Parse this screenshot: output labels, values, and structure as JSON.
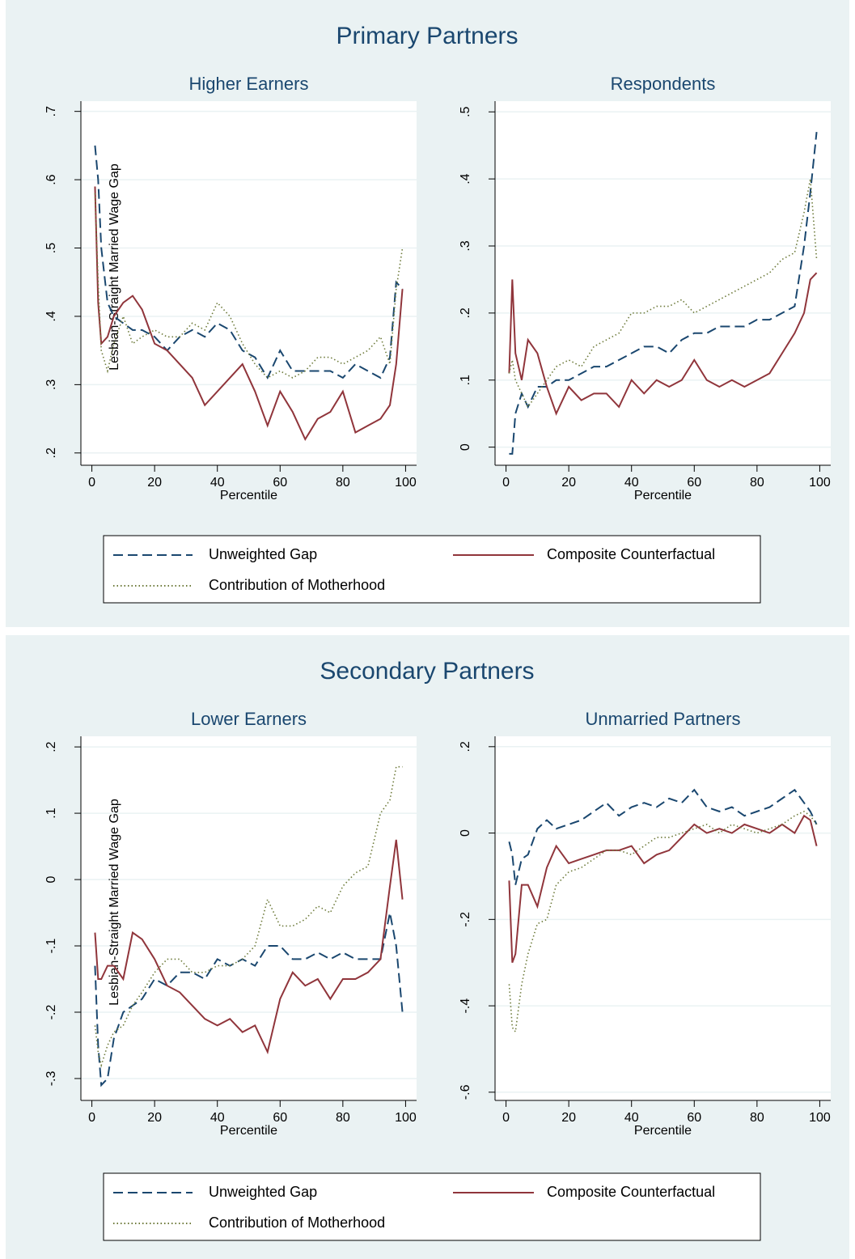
{
  "figure_titles": [
    "Primary Partners",
    "Secondary Partners"
  ],
  "chart_data": [
    {
      "type": "line",
      "title": "Higher Earners",
      "ylabel": "Lesbian-Straight Married Wage Gap",
      "xlabel": "Percentile",
      "grid": true,
      "xlim": [
        -3.5,
        103.5
      ],
      "xticks": [
        0,
        20,
        40,
        60,
        80,
        100
      ],
      "ylim": [
        0.182,
        0.715
      ],
      "yticks": [
        {
          "value": 0.2,
          "label": ".2"
        },
        {
          "value": 0.3,
          "label": ".3"
        },
        {
          "value": 0.4,
          "label": ".4"
        },
        {
          "value": 0.5,
          "label": ".5"
        },
        {
          "value": 0.6,
          "label": ".6"
        },
        {
          "value": 0.7,
          "label": ".7"
        }
      ],
      "x": [
        1,
        2,
        3,
        5,
        7,
        10,
        13,
        16,
        20,
        24,
        28,
        32,
        36,
        40,
        44,
        48,
        52,
        56,
        60,
        64,
        68,
        72,
        76,
        80,
        84,
        88,
        92,
        95,
        97,
        99
      ],
      "series": [
        {
          "name": "Unweighted Gap",
          "color": "#1a476f",
          "style": "dashed",
          "values": [
            0.65,
            0.6,
            0.5,
            0.42,
            0.4,
            0.39,
            0.38,
            0.38,
            0.37,
            0.35,
            0.37,
            0.38,
            0.37,
            0.39,
            0.38,
            0.35,
            0.34,
            0.31,
            0.35,
            0.32,
            0.32,
            0.32,
            0.32,
            0.31,
            0.33,
            0.32,
            0.31,
            0.34,
            0.45,
            0.44
          ]
        },
        {
          "name": "Composite Counterfactual",
          "color": "#90353b",
          "style": "solid",
          "values": [
            0.59,
            0.42,
            0.36,
            0.37,
            0.4,
            0.42,
            0.43,
            0.41,
            0.36,
            0.35,
            0.33,
            0.31,
            0.27,
            0.29,
            0.31,
            0.33,
            0.29,
            0.24,
            0.29,
            0.26,
            0.22,
            0.25,
            0.26,
            0.29,
            0.23,
            0.24,
            0.25,
            0.27,
            0.33,
            0.44
          ]
        },
        {
          "name": "Contribution of Motherhood",
          "color": "#6d7a3a",
          "style": "dotted",
          "values": [
            0.58,
            0.45,
            0.35,
            0.32,
            0.36,
            0.4,
            0.36,
            0.37,
            0.38,
            0.37,
            0.37,
            0.39,
            0.38,
            0.42,
            0.4,
            0.36,
            0.33,
            0.31,
            0.32,
            0.31,
            0.32,
            0.34,
            0.34,
            0.33,
            0.34,
            0.35,
            0.37,
            0.33,
            0.44,
            0.5
          ]
        }
      ]
    },
    {
      "type": "line",
      "title": "Respondents",
      "xlabel": "Percentile",
      "grid": true,
      "xlim": [
        -3.5,
        103.5
      ],
      "xticks": [
        0,
        20,
        40,
        60,
        80,
        100
      ],
      "ylim": [
        -0.027,
        0.516
      ],
      "yticks": [
        0,
        {
          "value": 0.1,
          "label": ".1"
        },
        {
          "value": 0.2,
          "label": ".2"
        },
        {
          "value": 0.3,
          "label": ".3"
        },
        {
          "value": 0.4,
          "label": ".4"
        },
        {
          "value": 0.5,
          "label": ".5"
        }
      ],
      "x": [
        1,
        2,
        3,
        5,
        7,
        10,
        13,
        16,
        20,
        24,
        28,
        32,
        36,
        40,
        44,
        48,
        52,
        56,
        60,
        64,
        68,
        72,
        76,
        80,
        84,
        88,
        92,
        95,
        97,
        99
      ],
      "series": [
        {
          "name": "Unweighted Gap",
          "color": "#1a476f",
          "style": "dashed",
          "values": [
            -0.01,
            -0.01,
            0.05,
            0.08,
            0.06,
            0.09,
            0.09,
            0.1,
            0.1,
            0.11,
            0.12,
            0.12,
            0.13,
            0.14,
            0.15,
            0.15,
            0.14,
            0.16,
            0.17,
            0.17,
            0.18,
            0.18,
            0.18,
            0.19,
            0.19,
            0.2,
            0.21,
            0.3,
            0.38,
            0.47
          ]
        },
        {
          "name": "Composite Counterfactual",
          "color": "#90353b",
          "style": "solid",
          "values": [
            0.11,
            0.25,
            0.14,
            0.1,
            0.16,
            0.14,
            0.09,
            0.05,
            0.09,
            0.07,
            0.08,
            0.08,
            0.06,
            0.1,
            0.08,
            0.1,
            0.09,
            0.1,
            0.13,
            0.1,
            0.09,
            0.1,
            0.09,
            0.1,
            0.11,
            0.14,
            0.17,
            0.2,
            0.25,
            0.26
          ]
        },
        {
          "name": "Contribution of Motherhood",
          "color": "#6d7a3a",
          "style": "dotted",
          "values": [
            0.11,
            0.13,
            0.1,
            0.08,
            0.06,
            0.08,
            0.1,
            0.12,
            0.13,
            0.12,
            0.15,
            0.16,
            0.17,
            0.2,
            0.2,
            0.21,
            0.21,
            0.22,
            0.2,
            0.21,
            0.22,
            0.23,
            0.24,
            0.25,
            0.26,
            0.28,
            0.29,
            0.35,
            0.4,
            0.28
          ]
        }
      ]
    },
    {
      "type": "line",
      "title": "Lower Earners",
      "ylabel": "Lesbian-Straight Married Wage Gap",
      "xlabel": "Percentile",
      "grid": true,
      "xlim": [
        -3.5,
        103.5
      ],
      "xticks": [
        0,
        20,
        40,
        60,
        80,
        100
      ],
      "ylim": [
        -0.333,
        0.216
      ],
      "yticks": [
        {
          "value": -0.3,
          "label": "-.3"
        },
        {
          "value": -0.2,
          "label": "-.2"
        },
        {
          "value": -0.1,
          "label": "-.1"
        },
        0,
        {
          "value": 0.1,
          "label": ".1"
        },
        {
          "value": 0.2,
          "label": ".2"
        }
      ],
      "x": [
        1,
        2,
        3,
        5,
        7,
        10,
        13,
        16,
        20,
        24,
        28,
        32,
        36,
        40,
        44,
        48,
        52,
        56,
        60,
        64,
        68,
        72,
        76,
        80,
        84,
        88,
        92,
        95,
        97,
        99
      ],
      "series": [
        {
          "name": "Unweighted Gap",
          "color": "#1a476f",
          "style": "dashed",
          "values": [
            -0.13,
            -0.25,
            -0.31,
            -0.3,
            -0.24,
            -0.2,
            -0.19,
            -0.18,
            -0.15,
            -0.16,
            -0.14,
            -0.14,
            -0.15,
            -0.12,
            -0.13,
            -0.12,
            -0.13,
            -0.1,
            -0.1,
            -0.12,
            -0.12,
            -0.11,
            -0.12,
            -0.11,
            -0.12,
            -0.12,
            -0.12,
            -0.05,
            -0.1,
            -0.2
          ]
        },
        {
          "name": "Composite Counterfactual",
          "color": "#90353b",
          "style": "solid",
          "values": [
            -0.08,
            -0.15,
            -0.15,
            -0.13,
            -0.13,
            -0.15,
            -0.08,
            -0.09,
            -0.12,
            -0.16,
            -0.17,
            -0.19,
            -0.21,
            -0.22,
            -0.21,
            -0.23,
            -0.22,
            -0.26,
            -0.18,
            -0.14,
            -0.16,
            -0.15,
            -0.18,
            -0.15,
            -0.15,
            -0.14,
            -0.12,
            -0.01,
            0.06,
            -0.03
          ]
        },
        {
          "name": "Contribution of Motherhood",
          "color": "#6d7a3a",
          "style": "dotted",
          "values": [
            -0.22,
            -0.26,
            -0.28,
            -0.25,
            -0.23,
            -0.22,
            -0.19,
            -0.17,
            -0.14,
            -0.12,
            -0.12,
            -0.14,
            -0.14,
            -0.13,
            -0.13,
            -0.12,
            -0.1,
            -0.03,
            -0.07,
            -0.07,
            -0.06,
            -0.04,
            -0.05,
            -0.01,
            0.01,
            0.02,
            0.1,
            0.12,
            0.17,
            0.17
          ]
        }
      ]
    },
    {
      "type": "line",
      "title": "Unmarried Partners",
      "xlabel": "Percentile",
      "grid": true,
      "xlim": [
        -3.5,
        103.5
      ],
      "xticks": [
        0,
        20,
        40,
        60,
        80,
        100
      ],
      "ylim": [
        -0.619,
        0.224
      ],
      "yticks": [
        {
          "value": -0.6,
          "label": "-.6"
        },
        {
          "value": -0.4,
          "label": "-.4"
        },
        {
          "value": -0.2,
          "label": "-.2"
        },
        0,
        {
          "value": 0.2,
          "label": ".2"
        }
      ],
      "x": [
        1,
        2,
        3,
        5,
        7,
        10,
        13,
        16,
        20,
        24,
        28,
        32,
        36,
        40,
        44,
        48,
        52,
        56,
        60,
        64,
        68,
        72,
        76,
        80,
        84,
        88,
        92,
        95,
        97,
        99
      ],
      "series": [
        {
          "name": "Unweighted Gap",
          "color": "#1a476f",
          "style": "dashed",
          "values": [
            -0.02,
            -0.05,
            -0.12,
            -0.06,
            -0.05,
            0.01,
            0.03,
            0.01,
            0.02,
            0.03,
            0.05,
            0.07,
            0.04,
            0.06,
            0.07,
            0.06,
            0.08,
            0.07,
            0.1,
            0.06,
            0.05,
            0.06,
            0.04,
            0.05,
            0.06,
            0.08,
            0.1,
            0.07,
            0.05,
            0.02
          ]
        },
        {
          "name": "Composite Counterfactual",
          "color": "#90353b",
          "style": "solid",
          "values": [
            -0.11,
            -0.3,
            -0.28,
            -0.12,
            -0.12,
            -0.17,
            -0.08,
            -0.03,
            -0.07,
            -0.06,
            -0.05,
            -0.04,
            -0.04,
            -0.03,
            -0.07,
            -0.05,
            -0.04,
            -0.01,
            0.02,
            0,
            0.01,
            0,
            0.02,
            0.01,
            0,
            0.02,
            0,
            0.04,
            0.03,
            -0.03
          ]
        },
        {
          "name": "Contribution of Motherhood",
          "color": "#6d7a3a",
          "style": "dotted",
          "values": [
            -0.35,
            -0.45,
            -0.46,
            -0.35,
            -0.28,
            -0.21,
            -0.2,
            -0.12,
            -0.09,
            -0.08,
            -0.06,
            -0.04,
            -0.04,
            -0.05,
            -0.03,
            -0.01,
            -0.01,
            0,
            0.01,
            0.02,
            0,
            0.02,
            0.01,
            0,
            0.01,
            0.02,
            0.04,
            0.05,
            0.04,
            0.02
          ]
        }
      ]
    }
  ]
}
